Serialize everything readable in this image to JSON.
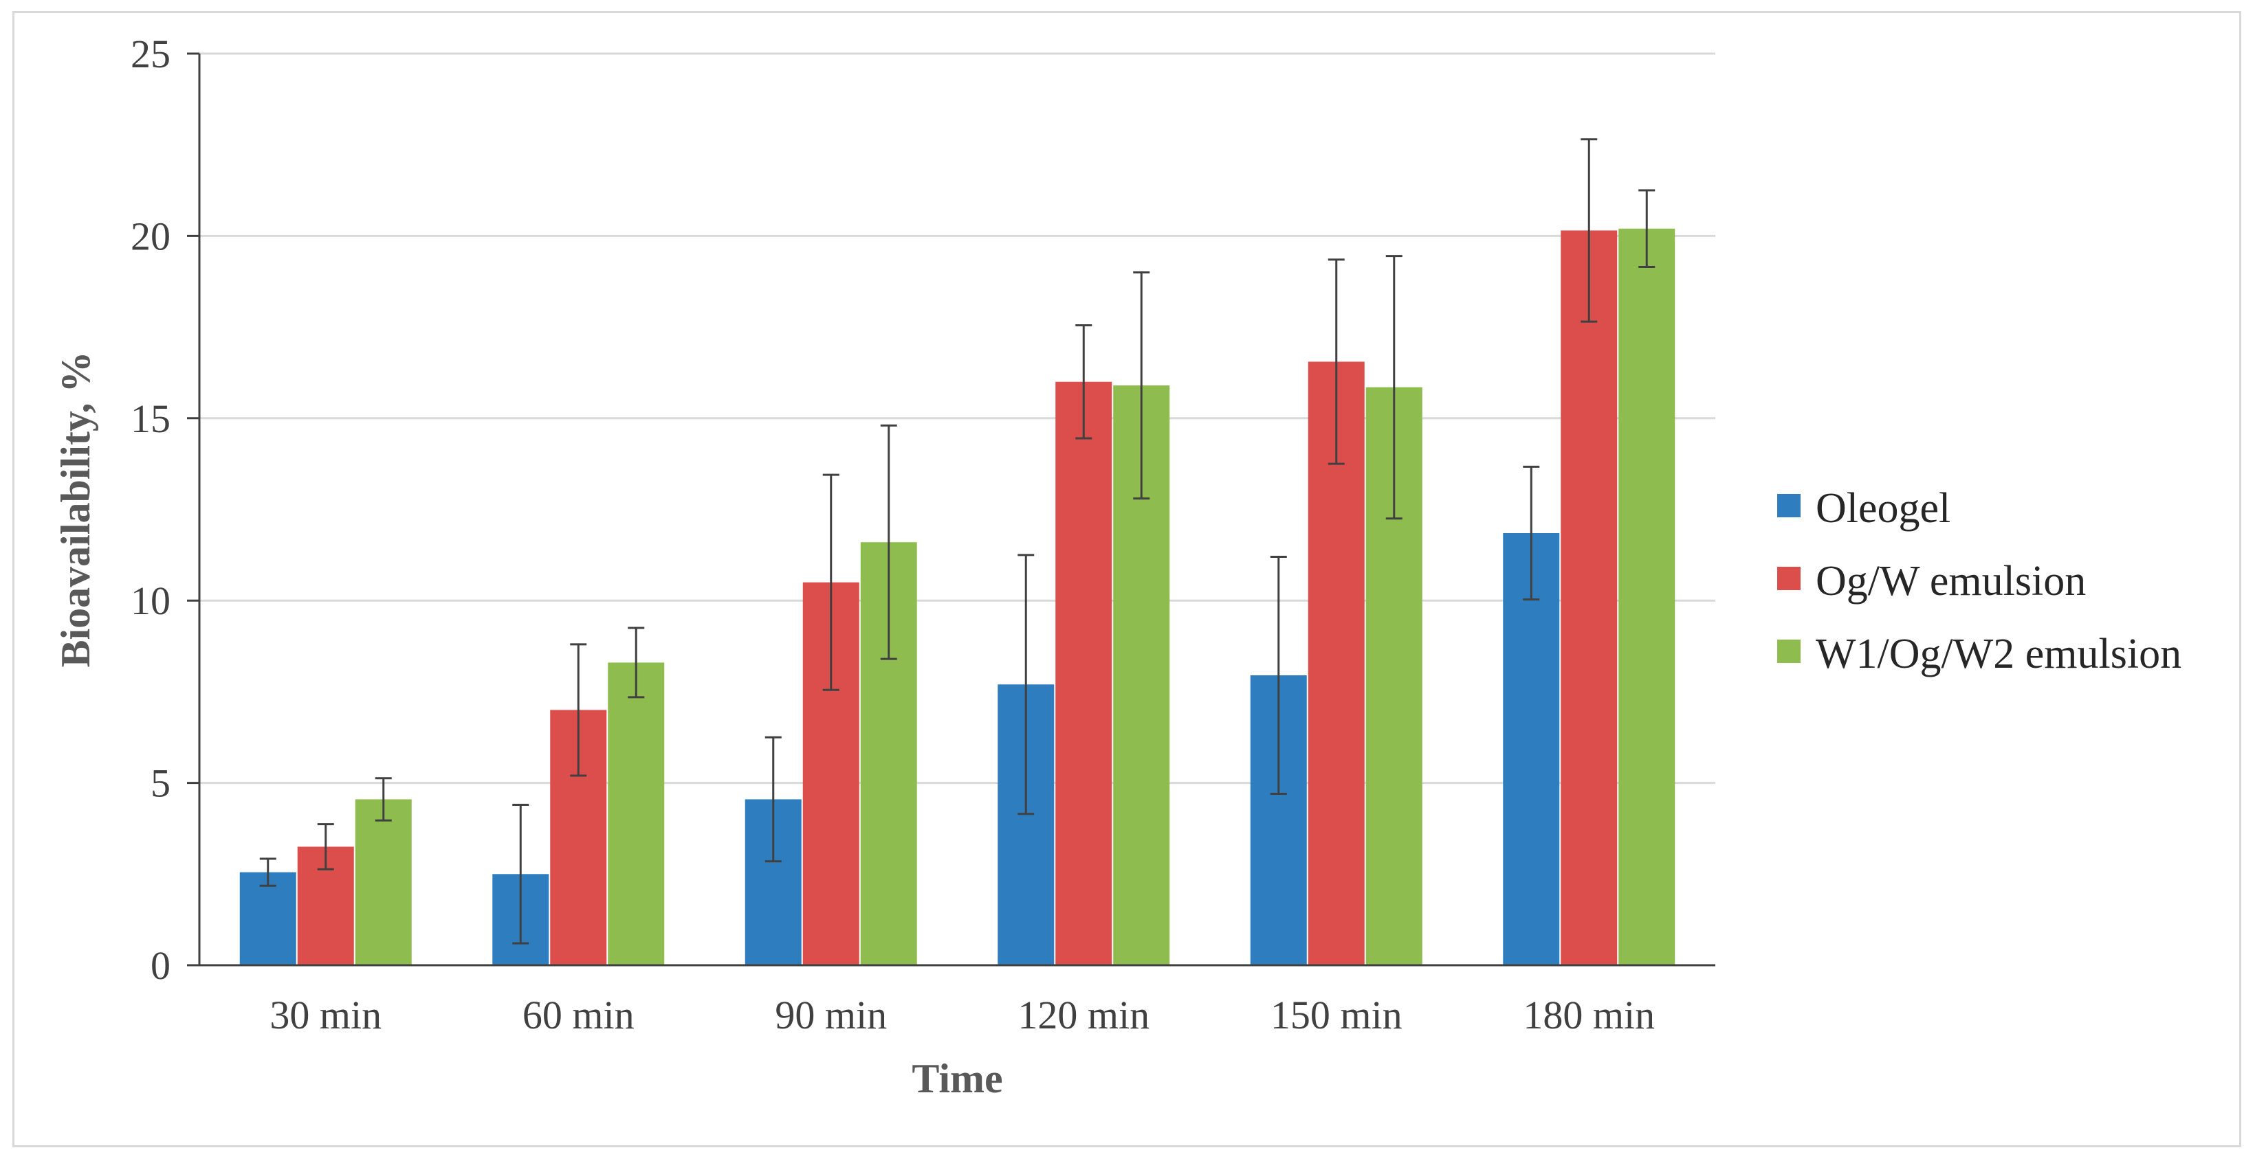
{
  "chart_data": {
    "type": "bar",
    "title": "",
    "xlabel": "Time",
    "ylabel": "Bioavailability, %",
    "ylim": [
      0,
      25
    ],
    "yticks": [
      0,
      5,
      10,
      15,
      20,
      25
    ],
    "grid": true,
    "legend_position": "right",
    "categories": [
      "30 min",
      "60 min",
      "90 min",
      "120 min",
      "150 min",
      "180 min"
    ],
    "series": [
      {
        "name": "Oleogel",
        "color": "#2e7ebf",
        "values": [
          2.55,
          2.5,
          4.55,
          7.7,
          7.95,
          11.85
        ],
        "errors": [
          0.37,
          1.9,
          1.7,
          3.55,
          3.25,
          1.82
        ]
      },
      {
        "name": "Og/W emulsion",
        "color": "#dc4e4b",
        "values": [
          3.25,
          7.0,
          10.5,
          16.0,
          16.55,
          20.15
        ],
        "errors": [
          0.62,
          1.8,
          2.95,
          1.55,
          2.8,
          2.5
        ]
      },
      {
        "name": "W1/Og/W2 emulsion",
        "color": "#8fbc4f",
        "values": [
          4.55,
          8.3,
          11.6,
          15.9,
          15.85,
          20.2
        ],
        "errors": [
          0.58,
          0.95,
          3.2,
          3.1,
          3.6,
          1.05
        ]
      }
    ]
  }
}
